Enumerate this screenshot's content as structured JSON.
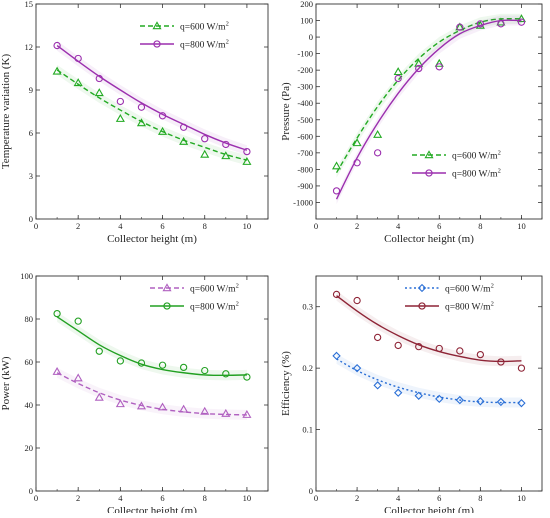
{
  "chart_data": [
    {
      "type": "line",
      "xlabel": "Collector height (m)",
      "ylabel": "Temperature variation (K)",
      "xlim": [
        0,
        11
      ],
      "ylim": [
        0,
        15
      ],
      "xticks": [
        0,
        2,
        4,
        6,
        8,
        10
      ],
      "yticks": [
        0,
        3,
        6,
        9,
        12,
        15
      ],
      "legend_position": "top-right",
      "series": [
        {
          "name": "q=600 W/m",
          "name_superscript": "2",
          "color": "#22aa22",
          "marker": "triangle",
          "line_style": "dashed",
          "x": [
            1,
            2,
            3,
            4,
            5,
            6,
            7,
            8,
            9,
            10
          ],
          "values": [
            10.3,
            9.5,
            8.8,
            7.0,
            6.7,
            6.1,
            5.4,
            4.5,
            4.4,
            4.0
          ],
          "fit": [
            10.4,
            9.4,
            8.45,
            7.6,
            6.8,
            6.1,
            5.5,
            5.0,
            4.5,
            4.1
          ]
        },
        {
          "name": "q=800 W/m",
          "name_superscript": "2",
          "color": "#9b2fae",
          "marker": "circle",
          "line_style": "solid",
          "x": [
            1,
            2,
            3,
            4,
            5,
            6,
            7,
            8,
            9,
            10
          ],
          "values": [
            12.1,
            11.2,
            9.8,
            8.2,
            7.8,
            7.2,
            6.4,
            5.6,
            5.2,
            4.7
          ],
          "fit": [
            12.1,
            11.0,
            9.95,
            9.0,
            8.1,
            7.3,
            6.6,
            5.9,
            5.3,
            4.8
          ]
        }
      ]
    },
    {
      "type": "line",
      "xlabel": "Collector height (m)",
      "ylabel": "Pressure (Pa)",
      "xlim": [
        0,
        11
      ],
      "ylim": [
        -1100,
        200
      ],
      "xticks": [
        0,
        2,
        4,
        6,
        8,
        10
      ],
      "yticks": [
        -1000,
        -900,
        -800,
        -700,
        -600,
        -500,
        -400,
        -300,
        -200,
        -100,
        0,
        100,
        200
      ],
      "legend_position": "bottom-right",
      "series": [
        {
          "name": "q=600 W/m",
          "name_superscript": "2",
          "color": "#22aa22",
          "marker": "triangle",
          "line_style": "dashed",
          "x": [
            1,
            2,
            3,
            4,
            5,
            6,
            7,
            8,
            9,
            10
          ],
          "values": [
            -780,
            -640,
            -590,
            -210,
            -160,
            -160,
            60,
            70,
            90,
            110
          ],
          "fit": [
            -820,
            -610,
            -420,
            -260,
            -130,
            -30,
            40,
            90,
            110,
            110
          ]
        },
        {
          "name": "q=800 W/m",
          "name_superscript": "2",
          "color": "#9b2fae",
          "marker": "circle",
          "line_style": "solid",
          "x": [
            1,
            2,
            3,
            4,
            5,
            6,
            7,
            8,
            9,
            10
          ],
          "values": [
            -930,
            -760,
            -700,
            -250,
            -190,
            -180,
            60,
            80,
            80,
            90
          ],
          "fit": [
            -980,
            -730,
            -520,
            -340,
            -190,
            -70,
            20,
            70,
            100,
            100
          ]
        }
      ]
    },
    {
      "type": "line",
      "xlabel": "Collector height (m)",
      "ylabel": "Power (kW)",
      "xlim": [
        0,
        11
      ],
      "ylim": [
        0,
        100
      ],
      "xticks": [
        0,
        2,
        4,
        6,
        8,
        10
      ],
      "yticks": [
        0,
        20,
        40,
        60,
        80,
        100
      ],
      "legend_position": "top-right",
      "series": [
        {
          "name": "q=600 W/m",
          "name_superscript": "2",
          "color": "#b060c0",
          "marker": "triangle",
          "line_style": "dashed",
          "x": [
            1,
            2,
            3,
            4,
            5,
            6,
            7,
            8,
            9,
            10
          ],
          "values": [
            55.5,
            52.5,
            43.5,
            40.5,
            39.5,
            39.0,
            38.0,
            37.0,
            36.0,
            35.5
          ],
          "fit": [
            55.0,
            50.0,
            45.7,
            42.3,
            39.8,
            38.0,
            36.8,
            36.0,
            35.6,
            35.4
          ]
        },
        {
          "name": "q=800 W/m",
          "name_superscript": "2",
          "color": "#22a022",
          "marker": "circle",
          "line_style": "solid",
          "x": [
            1,
            2,
            3,
            4,
            5,
            6,
            7,
            8,
            9,
            10
          ],
          "values": [
            82.5,
            79.0,
            65.0,
            60.5,
            59.5,
            58.5,
            57.5,
            56.0,
            54.5,
            53.0
          ],
          "fit": [
            81.0,
            74.5,
            68.0,
            63.0,
            59.0,
            56.5,
            55.0,
            54.0,
            53.8,
            54.0
          ]
        }
      ]
    },
    {
      "type": "line",
      "xlabel": "Collector height (m)",
      "ylabel": "Efficiency (%)",
      "xlim": [
        0,
        11
      ],
      "ylim": [
        0,
        0.35
      ],
      "xticks": [
        0,
        2,
        4,
        6,
        8,
        10
      ],
      "yticks": [
        0,
        0.1,
        0.2,
        0.3
      ],
      "legend_position": "top-right",
      "series": [
        {
          "name": "q=600 W/m",
          "name_superscript": "2",
          "color": "#2a6fd6",
          "marker": "diamond",
          "line_style": "dotted",
          "x": [
            1,
            2,
            3,
            4,
            5,
            6,
            7,
            8,
            9,
            10
          ],
          "values": [
            0.22,
            0.2,
            0.172,
            0.16,
            0.155,
            0.15,
            0.148,
            0.146,
            0.145,
            0.143
          ],
          "fit": [
            0.215,
            0.196,
            0.181,
            0.169,
            0.16,
            0.153,
            0.148,
            0.145,
            0.144,
            0.144
          ]
        },
        {
          "name": "q=800 W/m",
          "name_superscript": "2",
          "color": "#8e2436",
          "marker": "circle",
          "line_style": "solid",
          "x": [
            1,
            2,
            3,
            4,
            5,
            6,
            7,
            8,
            9,
            10
          ],
          "values": [
            0.32,
            0.31,
            0.25,
            0.237,
            0.235,
            0.232,
            0.228,
            0.222,
            0.21,
            0.2
          ],
          "fit": [
            0.318,
            0.293,
            0.271,
            0.253,
            0.238,
            0.227,
            0.219,
            0.213,
            0.211,
            0.212
          ]
        }
      ]
    }
  ]
}
